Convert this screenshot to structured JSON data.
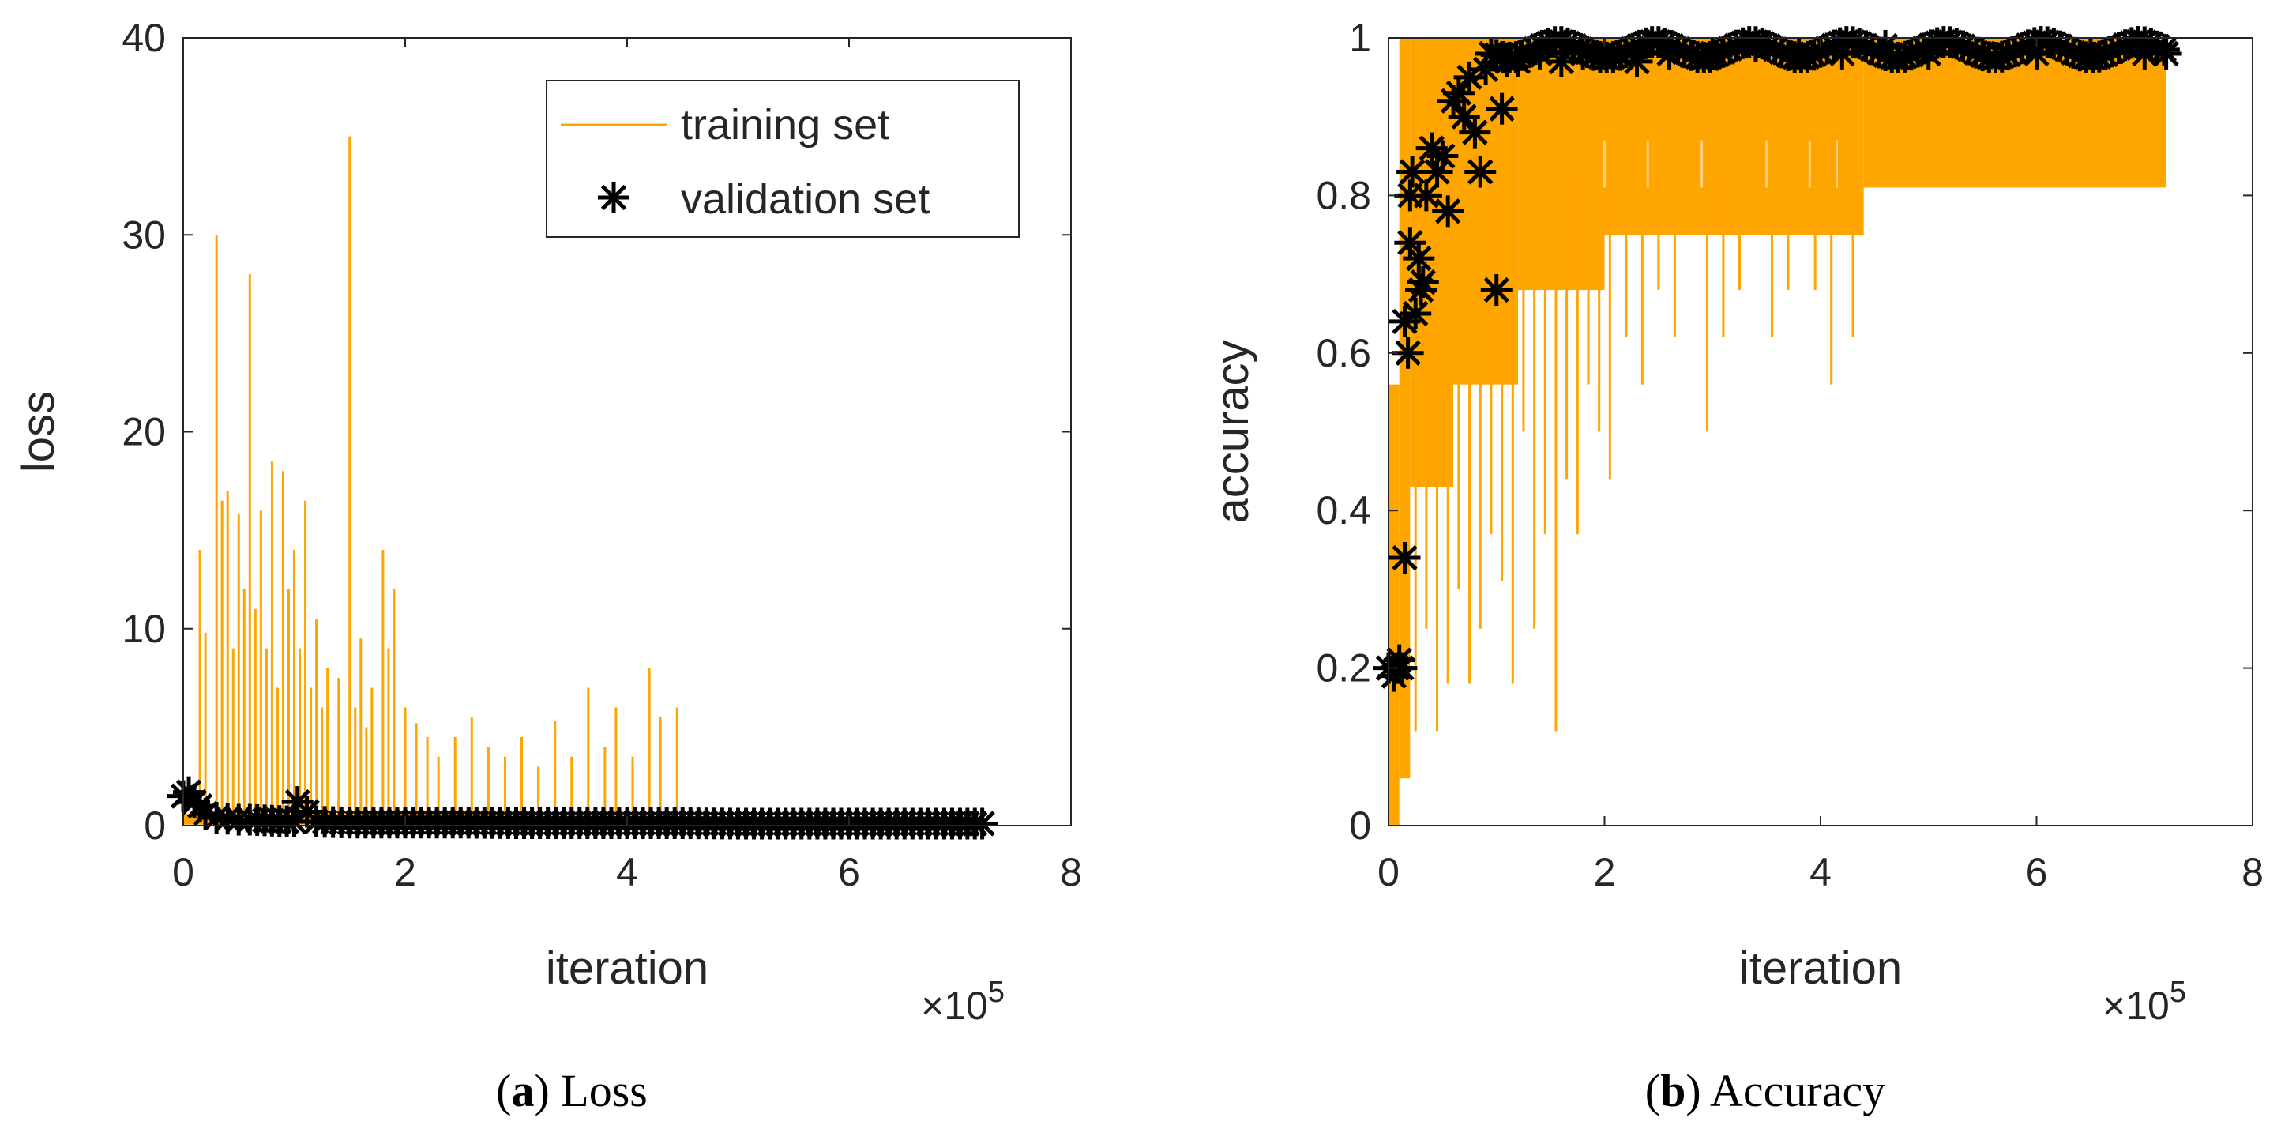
{
  "colors": {
    "training": "#FFA500",
    "validation": "#000000",
    "axis": "#262626"
  },
  "charts": [
    {
      "id": "loss",
      "caption": {
        "letter": "a",
        "text": "Loss"
      },
      "chart_data": {
        "type": "line",
        "title": "",
        "xlabel": "iteration",
        "ylabel": "loss",
        "x_exponent": "×10",
        "x_exponent_power": "5",
        "xlim": [
          0,
          8
        ],
        "ylim": [
          0,
          40
        ],
        "xticks": [
          0,
          2,
          4,
          6,
          8
        ],
        "yticks": [
          0,
          10,
          20,
          30,
          40
        ],
        "legend": {
          "location": "top-right",
          "entries": [
            "training set",
            "validation set"
          ]
        },
        "series": [
          {
            "name": "training set",
            "style": "line",
            "x_range": [
              0.0,
              4.45
            ],
            "baseline_band": [
              0.05,
              0.6
            ],
            "spikes": [
              [
                0.15,
                14
              ],
              [
                0.2,
                9.8
              ],
              [
                0.3,
                30
              ],
              [
                0.35,
                16.5
              ],
              [
                0.4,
                17
              ],
              [
                0.45,
                9
              ],
              [
                0.5,
                15.8
              ],
              [
                0.55,
                12
              ],
              [
                0.6,
                28
              ],
              [
                0.65,
                11
              ],
              [
                0.7,
                16
              ],
              [
                0.75,
                9
              ],
              [
                0.8,
                18.5
              ],
              [
                0.85,
                7
              ],
              [
                0.9,
                18
              ],
              [
                0.95,
                12
              ],
              [
                1.0,
                14
              ],
              [
                1.05,
                9
              ],
              [
                1.1,
                16.5
              ],
              [
                1.15,
                7
              ],
              [
                1.2,
                10.5
              ],
              [
                1.25,
                6
              ],
              [
                1.3,
                8
              ],
              [
                1.4,
                7.5
              ],
              [
                1.5,
                35
              ],
              [
                1.55,
                6
              ],
              [
                1.6,
                9.5
              ],
              [
                1.65,
                5
              ],
              [
                1.7,
                7
              ],
              [
                1.8,
                14
              ],
              [
                1.85,
                9
              ],
              [
                1.9,
                12
              ],
              [
                2.0,
                6
              ],
              [
                2.1,
                5.2
              ],
              [
                2.2,
                4.5
              ],
              [
                2.3,
                3.5
              ],
              [
                2.45,
                4.5
              ],
              [
                2.6,
                5.5
              ],
              [
                2.75,
                4
              ],
              [
                2.9,
                3.5
              ],
              [
                3.05,
                4.5
              ],
              [
                3.2,
                3
              ],
              [
                3.35,
                5.3
              ],
              [
                3.5,
                3.5
              ],
              [
                3.65,
                7
              ],
              [
                3.8,
                4
              ],
              [
                3.9,
                6
              ],
              [
                4.05,
                3.5
              ],
              [
                4.2,
                8
              ],
              [
                4.3,
                5.5
              ],
              [
                4.45,
                6
              ]
            ]
          },
          {
            "name": "validation set",
            "style": "markers",
            "marker": "*",
            "x": [
              0.0,
              0.05,
              0.1,
              0.15,
              0.2,
              0.3,
              0.4,
              0.5,
              0.6,
              0.8,
              1.0,
              1.03,
              1.2,
              1.5,
              2.0,
              2.5,
              3.0,
              3.5,
              4.0,
              4.5,
              5.0,
              5.5,
              6.0,
              6.5,
              7.0,
              7.2
            ],
            "y": [
              1.5,
              1.7,
              1.2,
              1.0,
              0.6,
              0.4,
              0.35,
              0.3,
              0.3,
              0.25,
              0.2,
              1.2,
              0.2,
              0.15,
              0.15,
              0.15,
              0.12,
              0.12,
              0.12,
              0.12,
              0.1,
              0.1,
              0.1,
              0.1,
              0.1,
              0.1
            ]
          }
        ]
      }
    },
    {
      "id": "accuracy",
      "caption": {
        "letter": "b",
        "text": "Accuracy"
      },
      "chart_data": {
        "type": "line",
        "title": "",
        "xlabel": "iteration",
        "ylabel": "accuracy",
        "x_exponent": "×10",
        "x_exponent_power": "5",
        "xlim": [
          0,
          8
        ],
        "ylim": [
          0,
          1
        ],
        "xticks": [
          0,
          2,
          4,
          6,
          8
        ],
        "yticks": [
          0,
          0.2,
          0.4,
          0.6,
          0.8,
          1
        ],
        "ytick_labels": [
          "0",
          "0.2",
          "0.4",
          "0.6",
          "0.8",
          "1"
        ],
        "legend": null,
        "series": [
          {
            "name": "training set",
            "style": "line",
            "band_segments": [
              {
                "x0": 0.0,
                "x1": 0.1,
                "y0": 0.0,
                "y1": 0.56
              },
              {
                "x0": 0.1,
                "x1": 0.2,
                "y0": 0.06,
                "y1": 1.0
              },
              {
                "x0": 0.2,
                "x1": 0.6,
                "y0": 0.43,
                "y1": 1.0
              },
              {
                "x0": 0.6,
                "x1": 1.2,
                "y0": 0.56,
                "y1": 1.0
              },
              {
                "x0": 1.2,
                "x1": 2.0,
                "y0": 0.68,
                "y1": 1.0
              },
              {
                "x0": 2.0,
                "x1": 4.4,
                "y0": 0.75,
                "y1": 1.0
              },
              {
                "x0": 4.4,
                "x1": 7.2,
                "y0": 0.81,
                "y1": 1.0
              }
            ],
            "dips": [
              [
                0.25,
                0.12
              ],
              [
                0.35,
                0.25
              ],
              [
                0.45,
                0.12
              ],
              [
                0.55,
                0.18
              ],
              [
                0.65,
                0.3
              ],
              [
                0.75,
                0.18
              ],
              [
                0.85,
                0.25
              ],
              [
                0.95,
                0.37
              ],
              [
                1.05,
                0.31
              ],
              [
                1.15,
                0.18
              ],
              [
                1.25,
                0.5
              ],
              [
                1.35,
                0.25
              ],
              [
                1.45,
                0.37
              ],
              [
                1.55,
                0.12
              ],
              [
                1.65,
                0.44
              ],
              [
                1.75,
                0.37
              ],
              [
                1.85,
                0.56
              ],
              [
                1.95,
                0.5
              ],
              [
                2.05,
                0.44
              ],
              [
                2.2,
                0.62
              ],
              [
                2.35,
                0.56
              ],
              [
                2.5,
                0.68
              ],
              [
                2.65,
                0.62
              ],
              [
                2.8,
                0.75
              ],
              [
                2.95,
                0.5
              ],
              [
                3.1,
                0.62
              ],
              [
                3.25,
                0.68
              ],
              [
                3.4,
                0.75
              ],
              [
                3.55,
                0.62
              ],
              [
                3.7,
                0.68
              ],
              [
                3.85,
                0.75
              ],
              [
                3.95,
                0.68
              ],
              [
                4.1,
                0.56
              ],
              [
                4.2,
                0.75
              ],
              [
                4.3,
                0.62
              ],
              [
                4.35,
                0.81
              ]
            ],
            "light_streaks": [
              [
                2.0,
                0.87
              ],
              [
                2.4,
                0.87
              ],
              [
                2.9,
                0.87
              ],
              [
                3.5,
                0.87
              ],
              [
                3.9,
                0.87
              ],
              [
                4.15,
                0.87
              ]
            ]
          },
          {
            "name": "validation set",
            "style": "markers",
            "marker": "*",
            "x": [
              0.0,
              0.05,
              0.08,
              0.1,
              0.12,
              0.15,
              0.15,
              0.18,
              0.2,
              0.2,
              0.22,
              0.25,
              0.28,
              0.3,
              0.32,
              0.35,
              0.4,
              0.45,
              0.5,
              0.55,
              0.6,
              0.65,
              0.7,
              0.75,
              0.8,
              0.85,
              0.9,
              0.95,
              1.0,
              1.05,
              1.1,
              1.2,
              1.4,
              1.6,
              1.8,
              2.0,
              2.3,
              2.6,
              3.0,
              3.4,
              3.8,
              4.2,
              4.6,
              5.0,
              5.5,
              6.0,
              6.5,
              7.0,
              7.2
            ],
            "y": [
              0.2,
              0.19,
              0.2,
              0.21,
              0.2,
              0.34,
              0.64,
              0.6,
              0.74,
              0.8,
              0.83,
              0.65,
              0.72,
              0.68,
              0.69,
              0.8,
              0.86,
              0.83,
              0.85,
              0.78,
              0.92,
              0.93,
              0.9,
              0.95,
              0.88,
              0.83,
              0.96,
              0.98,
              0.68,
              0.91,
              0.97,
              0.97,
              0.98,
              0.97,
              0.98,
              0.98,
              0.97,
              0.98,
              0.98,
              0.99,
              0.98,
              0.98,
              0.99,
              0.98,
              0.98,
              0.98,
              0.98,
              0.98,
              0.98
            ]
          }
        ]
      }
    }
  ]
}
